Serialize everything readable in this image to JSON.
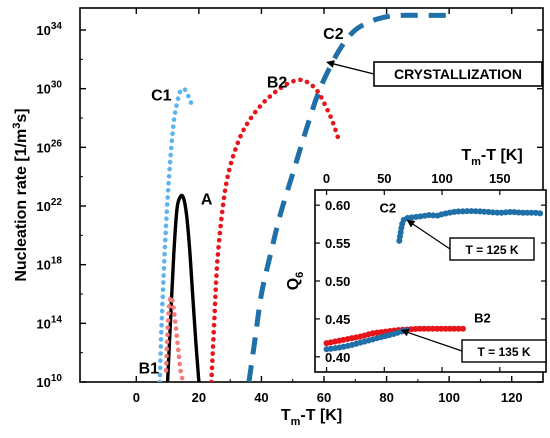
{
  "chart_data": [
    {
      "type": "scatter",
      "xlabel": "T",
      "xlabel_sub": "m",
      "xlabel_tail": "-T [K]",
      "ylabel": "Nucleation rate  [1/m",
      "ylabel_sup": "3",
      "ylabel_tail": "s]",
      "xlim": [
        -18,
        130
      ],
      "ylim_log10": [
        10,
        35.5
      ],
      "yscale": "log",
      "xticks": [
        "0",
        "20",
        "40",
        "60",
        "80",
        "100",
        "120"
      ],
      "yticks_base": "10",
      "yticks_exp": [
        "10",
        "14",
        "18",
        "22",
        "26",
        "30",
        "34"
      ],
      "colors": {
        "A": "#000000",
        "B1": "#f07b7b",
        "B2": "#e8141c",
        "C1": "#5cb3ef",
        "C2": "#1f6fa8"
      },
      "series": [
        {
          "name": "A",
          "style": "solid line",
          "x": [
            10,
            11,
            12,
            13,
            14,
            15,
            16,
            17,
            18,
            19,
            20
          ],
          "log10_y": [
            10,
            14.5,
            18.8,
            21.8,
            22.6,
            22.6,
            21.5,
            19.2,
            16.0,
            12.8,
            10
          ]
        },
        {
          "name": "B1",
          "style": "dotted",
          "x": [
            9.5,
            10,
            10.5,
            11,
            11.5,
            12,
            12.5,
            13,
            13.5,
            14,
            14.5,
            15
          ],
          "log10_y": [
            10.8,
            13.5,
            15.2,
            15.8,
            15.6,
            14.9,
            14.0,
            13.0,
            12.0,
            11.0,
            10.4,
            10
          ]
        },
        {
          "name": "B2",
          "style": "dotted",
          "x": [
            24,
            25,
            26,
            28,
            30,
            33,
            36,
            40,
            44,
            48,
            52,
            55,
            58,
            61,
            63,
            65
          ],
          "log10_y": [
            10,
            14.5,
            18.5,
            22.5,
            24.7,
            26.6,
            27.8,
            28.9,
            29.7,
            30.3,
            30.6,
            30.4,
            29.8,
            28.6,
            27.6,
            26.3
          ]
        },
        {
          "name": "C1",
          "style": "dotted",
          "x": [
            7.5,
            8,
            9,
            10,
            11,
            12,
            13,
            14,
            15,
            16,
            17,
            18
          ],
          "log10_y": [
            10,
            13.5,
            18.5,
            22.5,
            25.5,
            27.8,
            29.0,
            29.8,
            30.0,
            29.8,
            29.3,
            28.8
          ]
        },
        {
          "name": "C2",
          "style": "dashed",
          "x": [
            36,
            38,
            40,
            43,
            46,
            50,
            54,
            58,
            62,
            66,
            70,
            75,
            80,
            85,
            90,
            95,
            100
          ],
          "log10_y": [
            10,
            13,
            16,
            18.8,
            21.4,
            24.2,
            27.0,
            29.6,
            31.5,
            33.0,
            34.0,
            34.6,
            34.9,
            35.0,
            35.0,
            35.0,
            35.0
          ]
        }
      ],
      "annotations": [
        {
          "text": "A",
          "x": 22.5,
          "log10_y": 22.5
        },
        {
          "text": "B1",
          "x": 4,
          "log10_y": 11
        },
        {
          "text": "B2",
          "x": 45,
          "log10_y": 30.5
        },
        {
          "text": "C1",
          "x": 8,
          "log10_y": 29.6
        },
        {
          "text": "C2",
          "x": 63,
          "log10_y": 33.8
        },
        {
          "text": "CRYSTALLIZATION",
          "boxed": true,
          "arrow_to_x": 61,
          "arrow_to_log10_y": 31.8
        }
      ]
    },
    {
      "type": "scatter",
      "inset": true,
      "xlabel": "T",
      "xlabel_sub": "m",
      "xlabel_tail": "-T [K]",
      "ylabel": "Q",
      "ylabel_sub": "6",
      "xaxis_position": "top",
      "xlim": [
        -10,
        190
      ],
      "ylim": [
        0.38,
        0.62
      ],
      "xticks": [
        "0",
        "50",
        "100",
        "150"
      ],
      "yticks": [
        "0.40",
        "0.45",
        "0.50",
        "0.55",
        "0.60"
      ],
      "series": [
        {
          "name": "C2",
          "x": [
            63,
            66,
            70,
            75,
            80,
            85,
            90,
            95,
            100,
            110,
            120,
            130,
            140,
            150,
            160,
            170,
            180,
            186
          ],
          "y": [
            0.553,
            0.578,
            0.583,
            0.584,
            0.585,
            0.586,
            0.587,
            0.586,
            0.588,
            0.591,
            0.592,
            0.592,
            0.591,
            0.59,
            0.591,
            0.59,
            0.59,
            0.589
          ]
        },
        {
          "name": "B2",
          "x": [
            0,
            10,
            20,
            30,
            40,
            50,
            60,
            70,
            80,
            90,
            100,
            110,
            120
          ],
          "y": [
            0.418,
            0.421,
            0.424,
            0.427,
            0.431,
            0.433,
            0.435,
            0.436,
            0.437,
            0.437,
            0.437,
            0.437,
            0.437
          ]
        },
        {
          "name": "",
          "x": [
            0,
            10,
            20,
            30,
            40,
            50,
            60,
            70
          ],
          "y": [
            0.41,
            0.412,
            0.415,
            0.419,
            0.423,
            0.427,
            0.431,
            0.436
          ]
        }
      ],
      "annotations": [
        {
          "text": "C2",
          "x": 53,
          "y": 0.597
        },
        {
          "text": "B2",
          "x": 135,
          "y": 0.452
        },
        {
          "text": "T = 125 K",
          "boxed": true,
          "arrow_to_x": 70,
          "arrow_to_y": 0.58
        },
        {
          "text": "T = 135 K",
          "boxed": true,
          "arrow_to_x": 65,
          "arrow_to_y": 0.435
        }
      ]
    }
  ]
}
